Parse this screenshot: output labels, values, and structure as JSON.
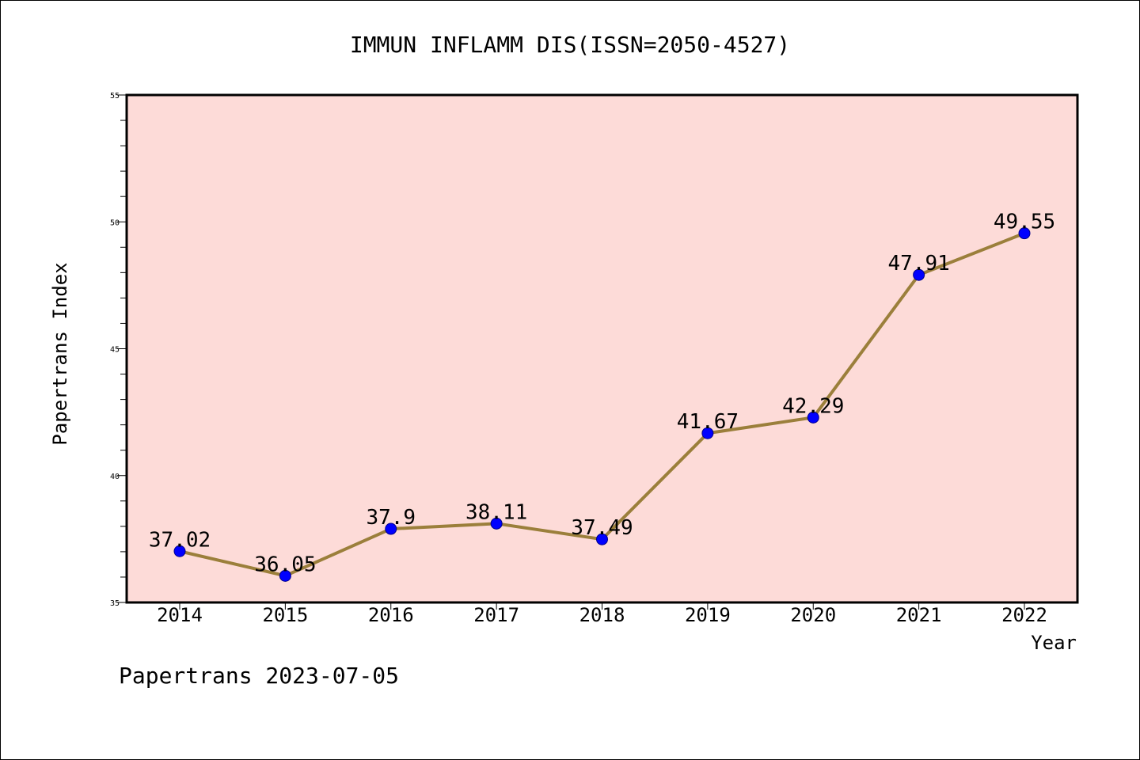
{
  "chart_data": {
    "type": "line",
    "title": "IMMUN INFLAMM DIS(ISSN=2050-4527)",
    "xlabel": "Year",
    "ylabel": "Papertrans Index",
    "categories": [
      "2014",
      "2015",
      "2016",
      "2017",
      "2018",
      "2019",
      "2020",
      "2021",
      "2022"
    ],
    "values": [
      37.02,
      36.05,
      37.9,
      38.11,
      37.49,
      41.67,
      42.29,
      47.91,
      49.55
    ],
    "value_labels": [
      "37.02",
      "36.05",
      "37.9",
      "38.11",
      "37.49",
      "41.67",
      "42.29",
      "47.91",
      "49.55"
    ],
    "ylim": [
      35,
      55
    ],
    "yticks": [
      35,
      40,
      45,
      50,
      55
    ],
    "grid": false,
    "colors": {
      "plot_background": "#fddbd8",
      "line": "#9b7f3b",
      "marker": "#0000ff"
    }
  },
  "footer": {
    "text": "Papertrans 2023-07-05"
  }
}
